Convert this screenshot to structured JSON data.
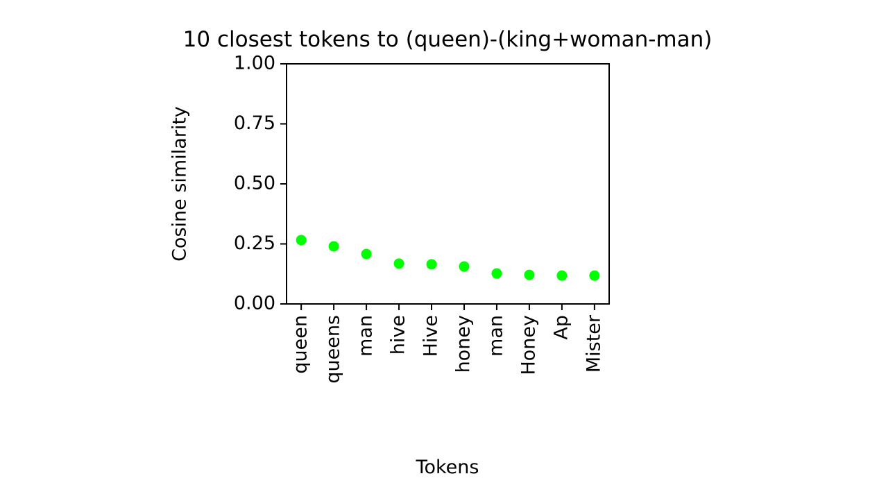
{
  "chart_data": {
    "type": "scatter",
    "title": "10 closest tokens to (queen)-(king+woman-man)",
    "x_label": "Tokens",
    "y_label": "Cosine similarity",
    "categories": [
      "queen",
      "queens",
      "man",
      "hive",
      "Hive",
      "honey",
      "man",
      "Honey",
      "Ap",
      "Mister"
    ],
    "values": [
      0.266,
      0.24,
      0.208,
      0.168,
      0.165,
      0.156,
      0.127,
      0.121,
      0.118,
      0.118
    ],
    "color": "#00ff00",
    "ylim": [
      0,
      1
    ],
    "yticks": [
      {
        "value": 0,
        "label": "0.00"
      },
      {
        "value": 0.25,
        "label": "0.25"
      },
      {
        "value": 0.5,
        "label": "0.50"
      },
      {
        "value": 0.75,
        "label": "0.75"
      },
      {
        "value": 1,
        "label": "1.00"
      }
    ],
    "grid": false
  }
}
